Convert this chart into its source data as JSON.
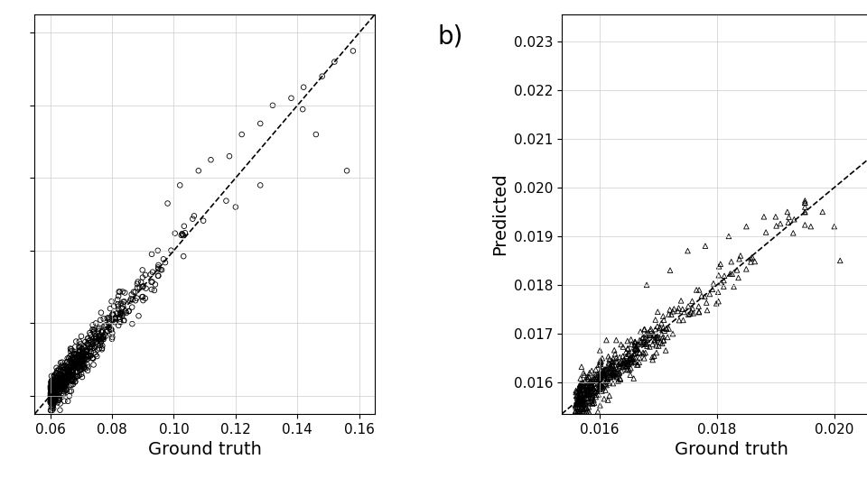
{
  "plot_a": {
    "xlabel": "Ground truth",
    "ylabel": "",
    "xlim": [
      0.055,
      0.165
    ],
    "ylim": [
      0.055,
      0.165
    ],
    "xticks": [
      0.06,
      0.08,
      0.1,
      0.12,
      0.14,
      0.16
    ],
    "yticks_vals": [
      0.06,
      0.08,
      0.1,
      0.12,
      0.14,
      0.16
    ],
    "show_ytick_labels": false,
    "marker": "o",
    "markersize": 4,
    "facecolor": "none",
    "edgecolor": "black",
    "linewidth": 0.6,
    "dashed_line_color": "black",
    "grid": true
  },
  "plot_b": {
    "label": "b)",
    "xlabel": "Ground truth",
    "ylabel": "Predicted",
    "xlim": [
      0.01535,
      0.02115
    ],
    "ylim": [
      0.01535,
      0.02355
    ],
    "xticks": [
      0.016,
      0.018,
      0.02
    ],
    "yticks": [
      0.016,
      0.017,
      0.018,
      0.019,
      0.02,
      0.021,
      0.022,
      0.023
    ],
    "marker": "^",
    "markersize": 4,
    "facecolor": "none",
    "edgecolor": "black",
    "linewidth": 0.6,
    "dashed_line_color": "black",
    "grid": true
  },
  "xlabel_fontsize": 14,
  "ylabel_fontsize": 14,
  "tick_fontsize": 11,
  "label_fontsize": 20,
  "background_color": "#ffffff"
}
